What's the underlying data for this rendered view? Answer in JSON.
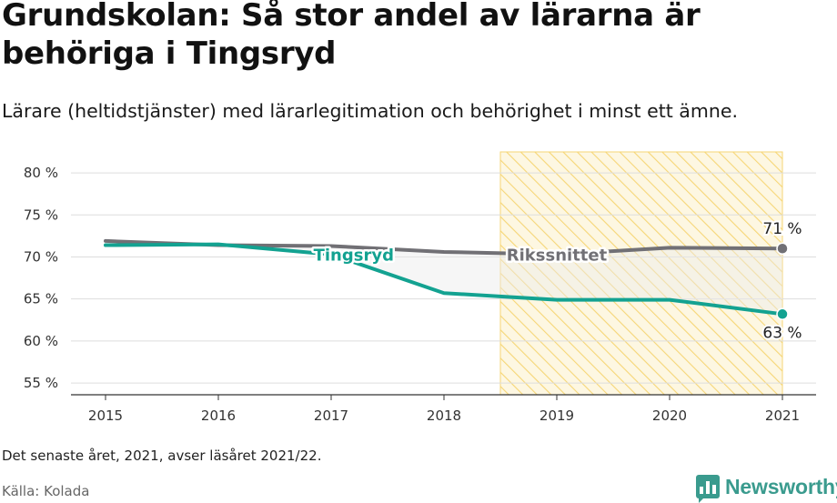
{
  "header": {
    "title": "Grundskolan: Så stor andel av lärarna är behöriga i Tingsryd",
    "subtitle": "Lärare (heltidstjänster) med lärarlegitimation och behörighet i minst ett ämne."
  },
  "chart_data": {
    "type": "line",
    "x": [
      "2015",
      "2016",
      "2017",
      "2018",
      "2019",
      "2020",
      "2021"
    ],
    "series": [
      {
        "name": "Tingsryd",
        "color": "#13a291",
        "values": [
          71.4,
          71.5,
          70.3,
          65.7,
          64.9,
          64.9,
          63.2
        ]
      },
      {
        "name": "Rikssnittet",
        "color": "#717075",
        "values": [
          71.9,
          71.4,
          71.3,
          70.6,
          70.3,
          71.1,
          71.0
        ]
      }
    ],
    "y_ticks": [
      55,
      60,
      65,
      70,
      75,
      80
    ],
    "y_tick_labels": [
      "55 %",
      "60 %",
      "65 %",
      "70 %",
      "75 %",
      "80 %"
    ],
    "ylim": [
      53.6,
      82.5
    ],
    "grid": true,
    "highlight_range": [
      "2018.5",
      "2021"
    ],
    "highlight_color": "#f6d676",
    "end_labels": {
      "Rikssnittet": "71 %",
      "Tingsryd": "63 %"
    }
  },
  "footer": {
    "note": "Det senaste året, 2021, avser läsåret 2021/22.",
    "source": "Källa: Kolada",
    "brand": "Newsworthy"
  }
}
